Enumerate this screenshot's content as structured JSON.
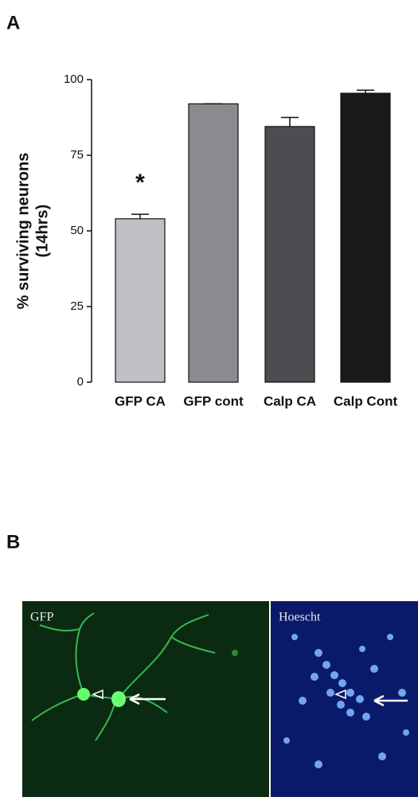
{
  "chart_data": {
    "type": "bar",
    "ylabel": [
      "% surviving neurons",
      "(14hrs)"
    ],
    "categories": [
      "GFP CA",
      "GFP cont",
      "Calp CA",
      "Calp Cont"
    ],
    "values": [
      54,
      92,
      84.5,
      95.5
    ],
    "errors": [
      1.5,
      0,
      3,
      1
    ],
    "colors": [
      "#bfc0c4",
      "#8a8b8f",
      "#4c4d51",
      "#1a1a1a"
    ],
    "ylim": [
      0,
      100
    ],
    "yticks": [
      0,
      25,
      50,
      75,
      100
    ],
    "annotations": [
      {
        "text": "*",
        "category": "GFP CA"
      }
    ]
  },
  "panels": {
    "a": "A",
    "b": "B"
  },
  "images": {
    "left_label": "GFP",
    "right_label": "Hoescht"
  }
}
